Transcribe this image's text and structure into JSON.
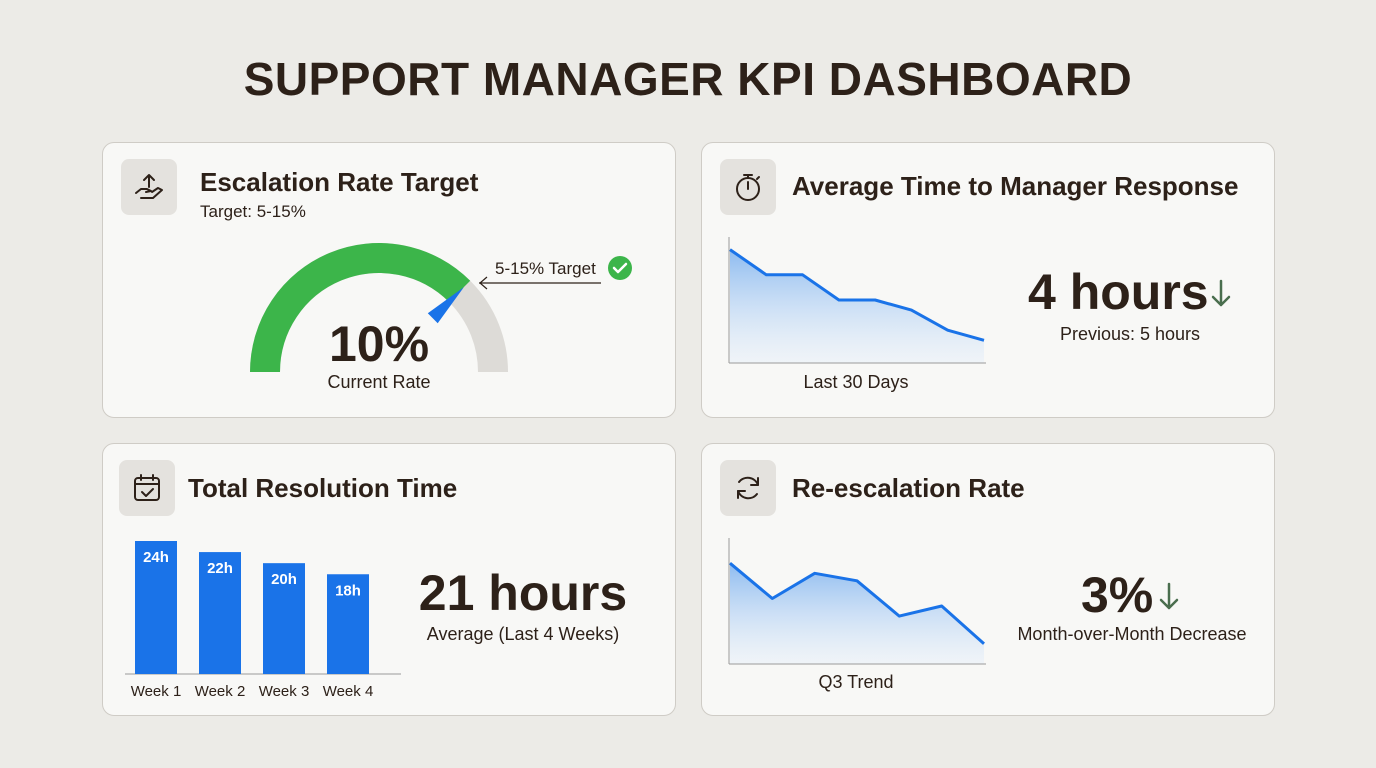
{
  "page": {
    "title": "SUPPORT MANAGER KPI DASHBOARD"
  },
  "escalation": {
    "title": "Escalation Rate Target",
    "target_text": "Target: 5-15%",
    "target_label": "5-15% Target",
    "value": "10%",
    "value_caption": "Current Rate",
    "colors": {
      "target_band": "#3cb54a",
      "track": "#dddbd7",
      "needle": "#1a73e8"
    },
    "icon": "hand-up-arrow-icon"
  },
  "response": {
    "title": "Average Time to Manager Response",
    "value": "4 hours",
    "previous": "Previous: 5 hours",
    "chart_caption": "Last 30 Days",
    "icon": "stopwatch-icon"
  },
  "resolution": {
    "title": "Total Resolution Time",
    "value": "21 hours",
    "caption": "Average (Last 4 Weeks)",
    "icon": "calendar-check-icon"
  },
  "reescalation": {
    "title": "Re-escalation Rate",
    "value": "3%",
    "caption": "Month-over-Month Decrease",
    "chart_caption": "Q3 Trend",
    "icon": "refresh-icon"
  },
  "colors": {
    "accent": "#1a73e8",
    "trend_down": "#4a6e4e",
    "text": "#2d2119"
  },
  "chart_data": [
    {
      "id": "escalation-gauge",
      "type": "gauge",
      "title": "Escalation Rate Target",
      "value": 10,
      "unit": "%",
      "target_range": [
        5,
        15
      ],
      "range": [
        0,
        20
      ]
    },
    {
      "id": "response-trend",
      "type": "area",
      "title": "Average Time to Manager Response",
      "xlabel": "Last 30 Days",
      "x": [
        0,
        1,
        2,
        3,
        4,
        5,
        6,
        7
      ],
      "values": [
        9.0,
        7.0,
        7.0,
        5.0,
        5.0,
        4.2,
        2.6,
        1.8
      ],
      "ylim": [
        0,
        10
      ]
    },
    {
      "id": "resolution-bars",
      "type": "bar",
      "title": "Total Resolution Time",
      "categories": [
        "Week 1",
        "Week 2",
        "Week 3",
        "Week 4"
      ],
      "values": [
        24,
        22,
        20,
        18
      ],
      "data_labels": [
        "24h",
        "22h",
        "20h",
        "18h"
      ],
      "ylim": [
        0,
        24
      ]
    },
    {
      "id": "reescalation-trend",
      "type": "area",
      "title": "Re-escalation Rate",
      "xlabel": "Q3 Trend",
      "x": [
        0,
        1,
        2,
        3,
        4,
        5,
        6
      ],
      "values": [
        8.0,
        5.2,
        7.2,
        6.6,
        3.8,
        4.6,
        1.6
      ],
      "ylim": [
        0,
        10
      ]
    }
  ]
}
